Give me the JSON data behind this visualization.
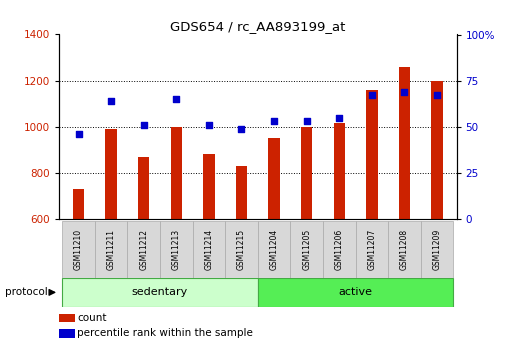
{
  "title": "GDS654 / rc_AA893199_at",
  "samples": [
    "GSM11210",
    "GSM11211",
    "GSM11212",
    "GSM11213",
    "GSM11214",
    "GSM11215",
    "GSM11204",
    "GSM11205",
    "GSM11206",
    "GSM11207",
    "GSM11208",
    "GSM11209"
  ],
  "counts": [
    730,
    990,
    870,
    1000,
    880,
    830,
    950,
    1000,
    1015,
    1160,
    1260,
    1200
  ],
  "percentiles": [
    46,
    64,
    51,
    65,
    51,
    49,
    53,
    53,
    55,
    67,
    69,
    67
  ],
  "bar_bottom": 600,
  "ylim_left": [
    600,
    1400
  ],
  "ylim_right": [
    0,
    100
  ],
  "yticks_left": [
    600,
    800,
    1000,
    1200,
    1400
  ],
  "yticks_right": [
    0,
    25,
    50,
    75,
    100
  ],
  "bar_color": "#cc2200",
  "dot_color": "#0000cc",
  "groups": [
    {
      "label": "sedentary",
      "start": 0,
      "end": 6,
      "color": "#ccffcc",
      "border": "#44aa44"
    },
    {
      "label": "active",
      "start": 6,
      "end": 12,
      "color": "#55ee55",
      "border": "#44aa44"
    }
  ],
  "protocol_label": "protocol",
  "legend_items": [
    {
      "label": "count",
      "color": "#cc2200"
    },
    {
      "label": "percentile rank within the sample",
      "color": "#0000cc"
    }
  ],
  "grid_color": "black",
  "bg_color": "white",
  "tick_label_color_left": "#cc2200",
  "tick_label_color_right": "#0000cc",
  "bar_width": 0.35,
  "dot_size": 22,
  "sample_box_color": "#d8d8d8",
  "sample_box_edge": "#aaaaaa"
}
